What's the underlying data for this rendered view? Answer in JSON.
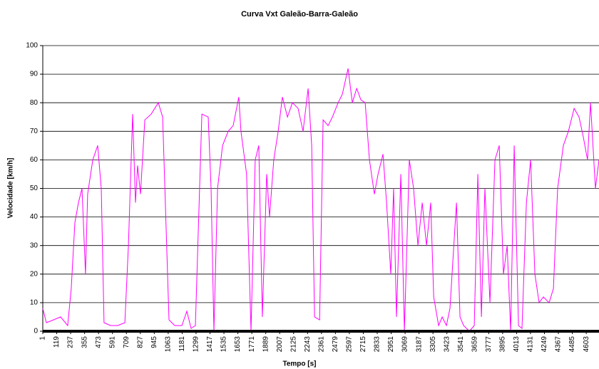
{
  "chart_data": {
    "type": "line",
    "title": "Curva Vxt Galeão-Barra-Galeão",
    "x_label": "Tempo [s]",
    "y_label": "Velocidade [km/h]",
    "color": "#ff00ff",
    "grid": true,
    "x": [
      1,
      31,
      92,
      152,
      212,
      242,
      273,
      303,
      333,
      363,
      381,
      424,
      466,
      496,
      520,
      575,
      635,
      696,
      726,
      762,
      786,
      804,
      828,
      865,
      919,
      979,
      1016,
      1046,
      1070,
      1118,
      1179,
      1221,
      1257,
      1293,
      1348,
      1402,
      1426,
      1450,
      1481,
      1523,
      1571,
      1613,
      1661,
      1679,
      1727,
      1764,
      1800,
      1830,
      1860,
      1897,
      1921,
      1957,
      1994,
      2030,
      2073,
      2115,
      2163,
      2205,
      2248,
      2278,
      2302,
      2345,
      2375,
      2417,
      2453,
      2502,
      2538,
      2586,
      2622,
      2659,
      2695,
      2731,
      2767,
      2809,
      2840,
      2882,
      2912,
      2948,
      2972,
      2996,
      3033,
      3063,
      3105,
      3141,
      3178,
      3214,
      3250,
      3286,
      3311,
      3353,
      3383,
      3419,
      3449,
      3504,
      3534,
      3564,
      3613,
      3655,
      3685,
      3715,
      3745,
      3788,
      3830,
      3866,
      3902,
      3933,
      3963,
      3993,
      4029,
      4059,
      4096,
      4132,
      4168,
      4204,
      4240,
      4289,
      4325,
      4361,
      4409,
      4452,
      4500,
      4542,
      4578,
      4614,
      4639,
      4681,
      4711
    ],
    "values": [
      8,
      3,
      4,
      5,
      2,
      15,
      38,
      45,
      50,
      20,
      48,
      60,
      65,
      50,
      3,
      2,
      2,
      3,
      30,
      76,
      45,
      58,
      48,
      74,
      76,
      80,
      75,
      35,
      4,
      2,
      2,
      7,
      1,
      2,
      76,
      75,
      50,
      0,
      50,
      65,
      70,
      72,
      82,
      70,
      55,
      0,
      60,
      65,
      5,
      55,
      40,
      60,
      70,
      82,
      75,
      80,
      78,
      70,
      85,
      65,
      5,
      4,
      74,
      72,
      75,
      80,
      83,
      92,
      80,
      85,
      81,
      80,
      60,
      48,
      55,
      62,
      45,
      20,
      50,
      5,
      55,
      0,
      60,
      50,
      30,
      45,
      30,
      45,
      12,
      2,
      5,
      2,
      8,
      45,
      5,
      2,
      0,
      2,
      55,
      5,
      50,
      10,
      60,
      65,
      20,
      30,
      0,
      65,
      2,
      1,
      45,
      60,
      20,
      10,
      12,
      10,
      15,
      50,
      65,
      70,
      78,
      75,
      68,
      60,
      80,
      50,
      60
    ],
    "xlim": [
      1,
      4711
    ],
    "xticks": [
      1,
      119,
      237,
      355,
      473,
      591,
      709,
      827,
      945,
      1063,
      1181,
      1299,
      1417,
      1535,
      1653,
      1771,
      1889,
      2007,
      2125,
      2243,
      2361,
      2479,
      2597,
      2715,
      2833,
      2951,
      3069,
      3187,
      3305,
      3423,
      3541,
      3659,
      3777,
      3895,
      4013,
      4131,
      4249,
      4367,
      4485,
      4603
    ],
    "ylim": [
      0,
      100
    ],
    "yticks": [
      0,
      10,
      20,
      30,
      40,
      50,
      60,
      70,
      80,
      90,
      100
    ]
  }
}
